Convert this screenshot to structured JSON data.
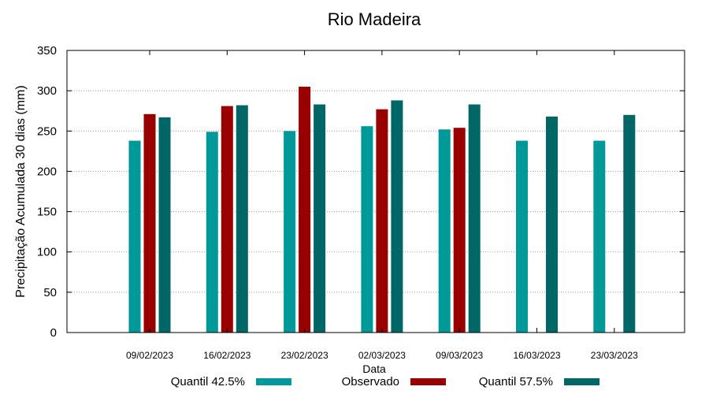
{
  "chart_data": {
    "type": "bar",
    "title": "Rio Madeira",
    "xlabel": "Data",
    "ylabel": "Precipitação Acumulada 30 dias (mm)",
    "ylim": [
      0,
      350
    ],
    "yticks": [
      0,
      50,
      100,
      150,
      200,
      250,
      300,
      350
    ],
    "grid": true,
    "legend_position": "bottom",
    "categories": [
      "09/02/2023",
      "16/02/2023",
      "23/02/2023",
      "02/03/2023",
      "09/03/2023",
      "16/03/2023",
      "23/03/2023"
    ],
    "series": [
      {
        "name": "Quantil 42.5%",
        "color": "#009999",
        "values": [
          238,
          249,
          250,
          256,
          252,
          238,
          238
        ]
      },
      {
        "name": "Observado",
        "color": "#990000",
        "values": [
          271,
          281,
          305,
          277,
          254,
          null,
          null
        ]
      },
      {
        "name": "Quantil 57.5%",
        "color": "#006666",
        "values": [
          267,
          282,
          283,
          288,
          283,
          268,
          270
        ]
      }
    ]
  }
}
